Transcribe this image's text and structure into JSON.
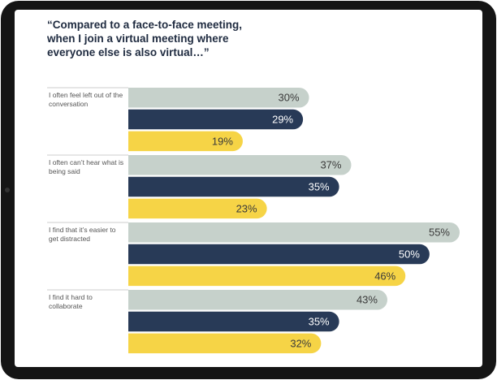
{
  "chart_data": {
    "type": "bar",
    "orientation": "horizontal",
    "title": "“Compared to a face-to-face meeting, when I join a virtual meeting where everyone else is also virtual…”",
    "categories": [
      "I often feel left out of the conversation",
      "I often can’t hear what is being said",
      "I find that it’s easier to get distracted",
      "I find it hard to collaborate"
    ],
    "series": [
      {
        "color": "#c6d1cb",
        "values": [
          30,
          37,
          55,
          43
        ],
        "value_labels": [
          "30%",
          "37%",
          "55%",
          "43%"
        ]
      },
      {
        "color": "#283a57",
        "values": [
          29,
          35,
          50,
          35
        ],
        "value_labels": [
          "29%",
          "35%",
          "50%",
          "35%"
        ]
      },
      {
        "color": "#f6d446",
        "values": [
          19,
          23,
          46,
          32
        ],
        "value_labels": [
          "19%",
          "23%",
          "46%",
          "32%"
        ]
      }
    ]
  }
}
